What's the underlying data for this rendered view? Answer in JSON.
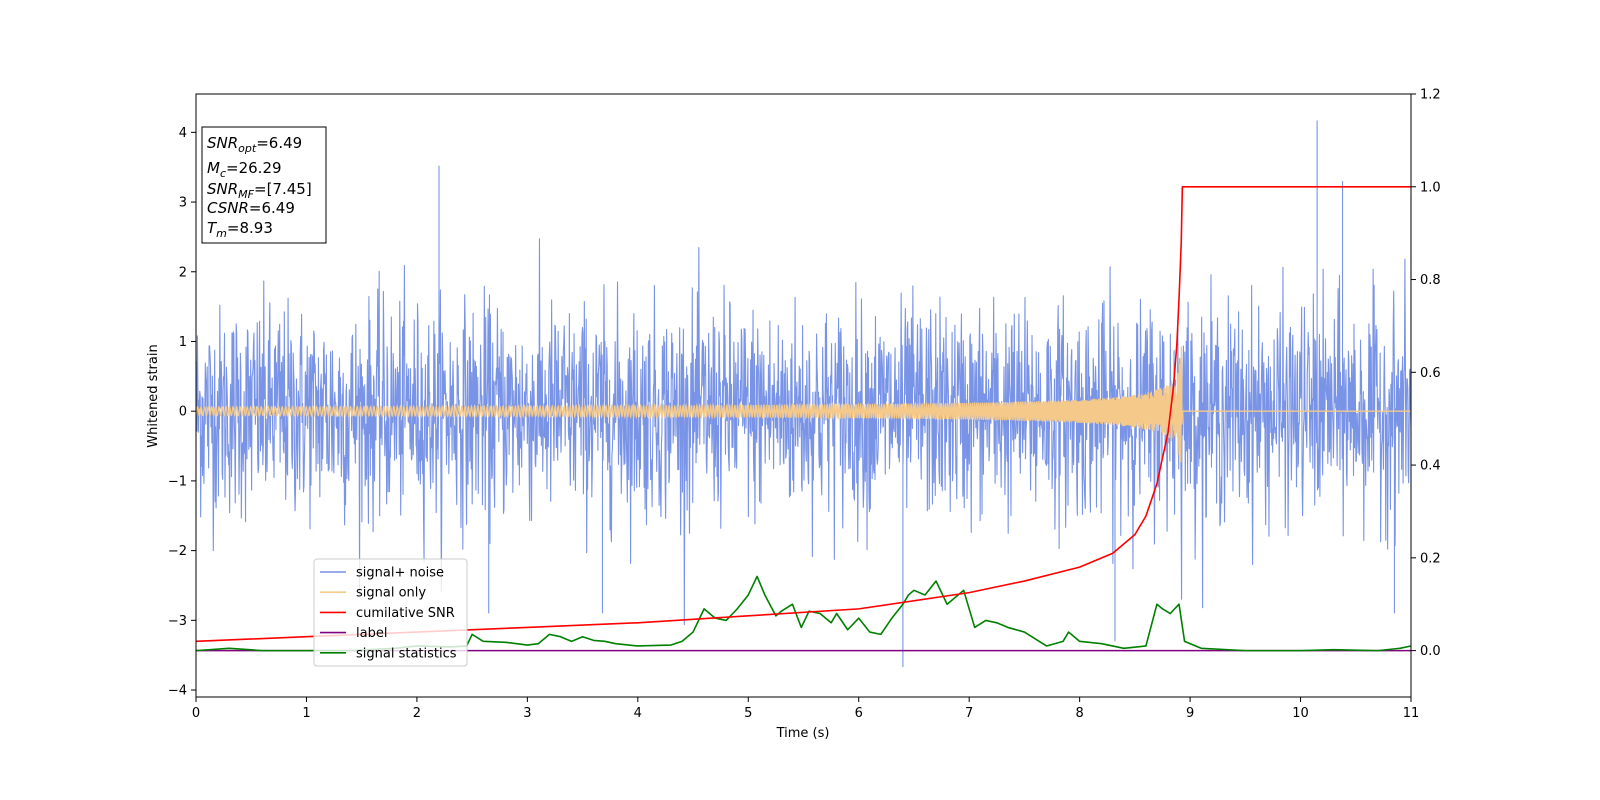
{
  "chart_data": {
    "type": "line",
    "xlabel": "Time (s)",
    "ylabel": "Whitened strain",
    "xlim": [
      0,
      11
    ],
    "ylim_left": [
      -4.1,
      4.55
    ],
    "ylim_right": [
      -0.1,
      1.2
    ],
    "x_ticks": [
      0,
      1,
      2,
      3,
      4,
      5,
      6,
      7,
      8,
      9,
      10,
      11
    ],
    "y_ticks_left": [
      -4,
      -3,
      -2,
      -1,
      0,
      1,
      2,
      3,
      4
    ],
    "y_ticks_right": [
      0.0,
      0.2,
      0.4,
      0.6,
      0.8,
      1.0,
      1.2
    ],
    "x_tick_labels": [
      "0",
      "1",
      "2",
      "3",
      "4",
      "5",
      "6",
      "7",
      "8",
      "9",
      "10",
      "11"
    ],
    "y_tick_labels_left": [
      "−4",
      "−3",
      "−2",
      "−1",
      "0",
      "1",
      "2",
      "3",
      "4"
    ],
    "y_tick_labels_right": [
      "0.0",
      "0.2",
      "0.4",
      "0.6",
      "0.8",
      "1.0",
      "1.2"
    ],
    "grid": false,
    "legend_position": "lower-left",
    "merger_time": 8.93,
    "series": [
      {
        "name": "signal+ noise",
        "axis": "left",
        "color": "#7994e6",
        "noise_sigma": 0.75,
        "peak_spikes": [
          [
            2.2,
            3.52
          ],
          [
            10.15,
            4.17
          ],
          [
            10.38,
            3.3
          ],
          [
            11.0,
            3.1
          ],
          [
            6.4,
            -3.67
          ],
          [
            8.32,
            -3.3
          ],
          [
            2.65,
            -2.9
          ],
          [
            3.68,
            -2.9
          ],
          [
            10.85,
            -2.9
          ]
        ]
      },
      {
        "name": "signal only",
        "axis": "left",
        "color": "#f4c98a",
        "chirp_peak_amplitude": 1.2,
        "chirp_end": 8.93
      },
      {
        "name": "cumilative SNR",
        "axis": "right",
        "color": "#ff0000",
        "x": [
          0,
          1,
          2,
          3,
          4,
          5,
          6,
          7,
          7.5,
          8,
          8.3,
          8.5,
          8.6,
          8.7,
          8.8,
          8.85,
          8.88,
          8.9,
          8.92,
          8.93,
          9.0,
          10,
          11
        ],
        "values": [
          0.02,
          0.03,
          0.04,
          0.05,
          0.06,
          0.075,
          0.09,
          0.125,
          0.15,
          0.18,
          0.21,
          0.25,
          0.29,
          0.36,
          0.47,
          0.57,
          0.66,
          0.76,
          0.88,
          1.0,
          1.0,
          1.0,
          1.0
        ]
      },
      {
        "name": "label",
        "axis": "right",
        "color": "#800080",
        "x": [
          0,
          11
        ],
        "values": [
          0.0,
          0.0
        ]
      },
      {
        "name": "signal statistics",
        "axis": "right",
        "color": "#008000",
        "x": [
          0,
          0.3,
          0.6,
          1.0,
          1.4,
          1.8,
          2.0,
          2.3,
          2.45,
          2.5,
          2.6,
          2.8,
          3.0,
          3.1,
          3.2,
          3.3,
          3.4,
          3.5,
          3.6,
          3.7,
          3.8,
          4.0,
          4.3,
          4.4,
          4.5,
          4.6,
          4.7,
          4.8,
          4.9,
          5.0,
          5.08,
          5.15,
          5.25,
          5.3,
          5.4,
          5.48,
          5.55,
          5.65,
          5.75,
          5.8,
          5.9,
          6.0,
          6.05,
          6.1,
          6.2,
          6.3,
          6.4,
          6.45,
          6.5,
          6.6,
          6.7,
          6.8,
          6.85,
          6.95,
          7.05,
          7.15,
          7.25,
          7.35,
          7.5,
          7.7,
          7.85,
          7.9,
          8.0,
          8.2,
          8.4,
          8.6,
          8.7,
          8.75,
          8.82,
          8.9,
          8.95,
          9.1,
          9.5,
          10.0,
          10.3,
          10.7,
          10.9,
          11.0
        ],
        "values": [
          0.0,
          0.005,
          0.0,
          0.0,
          0.0,
          0.005,
          0.01,
          0.008,
          0.01,
          0.035,
          0.02,
          0.018,
          0.012,
          0.015,
          0.035,
          0.03,
          0.02,
          0.03,
          0.022,
          0.02,
          0.015,
          0.01,
          0.012,
          0.02,
          0.04,
          0.09,
          0.07,
          0.065,
          0.09,
          0.12,
          0.16,
          0.12,
          0.075,
          0.085,
          0.1,
          0.05,
          0.085,
          0.08,
          0.06,
          0.08,
          0.045,
          0.07,
          0.055,
          0.04,
          0.035,
          0.07,
          0.1,
          0.12,
          0.13,
          0.12,
          0.15,
          0.1,
          0.11,
          0.13,
          0.05,
          0.065,
          0.06,
          0.05,
          0.04,
          0.01,
          0.02,
          0.04,
          0.02,
          0.015,
          0.005,
          0.01,
          0.1,
          0.09,
          0.08,
          0.1,
          0.02,
          0.005,
          0.0,
          0.0,
          0.002,
          0.0,
          0.005,
          0.01
        ]
      }
    ],
    "annotation": {
      "lines": [
        {
          "sym": "SNR",
          "sub": "opt",
          "value": "=6.49"
        },
        {
          "sym": "M",
          "sub": "c",
          "value": "=26.29"
        },
        {
          "sym": "SNR",
          "sub": "MF",
          "value": "=[7.45]"
        },
        {
          "sym": "CSNR",
          "sub": "",
          "value": "=6.49"
        },
        {
          "sym": "T",
          "sub": "m",
          "value": "=8.93"
        }
      ]
    }
  }
}
